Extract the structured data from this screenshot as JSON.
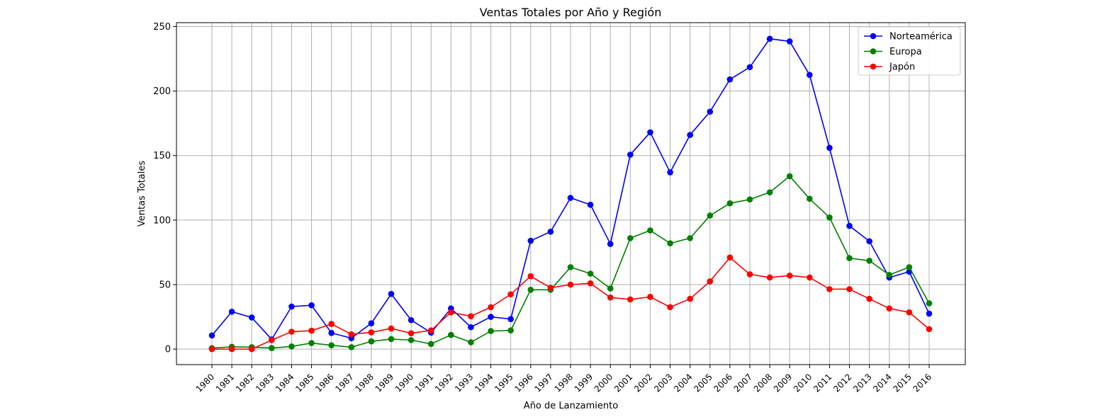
{
  "chart_data": {
    "type": "line",
    "title": "Ventas Totales por Año y Región",
    "xlabel": "Año de Lanzamiento",
    "ylabel": "Ventas Totales",
    "ylim": [
      -12,
      253
    ],
    "yticks": [
      0,
      50,
      100,
      150,
      200,
      250
    ],
    "grid": true,
    "legend_position": "top-right",
    "categories": [
      "1980",
      "1981",
      "1982",
      "1983",
      "1984",
      "1985",
      "1986",
      "1987",
      "1988",
      "1989",
      "1990",
      "1991",
      "1992",
      "1993",
      "1994",
      "1995",
      "1996",
      "1997",
      "1998",
      "1999",
      "2000",
      "2001",
      "2002",
      "2003",
      "2004",
      "2005",
      "2006",
      "2007",
      "2008",
      "2009",
      "2010",
      "2011",
      "2012",
      "2013",
      "2014",
      "2015",
      "2016"
    ],
    "series": [
      {
        "name": "Norteamérica",
        "color": "#0000ff",
        "values": [
          10.6,
          29.0,
          24.5,
          7.5,
          33.0,
          34.0,
          12.5,
          8.5,
          20.0,
          42.8,
          22.5,
          12.8,
          31.5,
          17.0,
          25.0,
          23.3,
          84.0,
          91.0,
          117.2,
          111.9,
          81.5,
          150.7,
          168.0,
          137.0,
          166.0,
          184.0,
          209.0,
          218.5,
          240.5,
          238.5,
          212.5,
          156.0,
          95.5,
          83.6,
          55.5,
          60.0,
          27.5
        ]
      },
      {
        "name": "Europa",
        "color": "#008000",
        "values": [
          0.7,
          1.8,
          1.5,
          0.8,
          2.1,
          4.7,
          3.0,
          1.5,
          6.0,
          7.8,
          7.0,
          4.0,
          11.0,
          5.3,
          14.0,
          14.5,
          46.0,
          46.0,
          63.5,
          58.5,
          47.0,
          86.0,
          92.0,
          82.0,
          86.0,
          103.5,
          113.0,
          116.0,
          121.5,
          134.0,
          116.5,
          102.0,
          70.5,
          68.5,
          57.5,
          63.5,
          35.5
        ]
      },
      {
        "name": "Japón",
        "color": "#ff0000",
        "values": [
          0.0,
          0.0,
          0.0,
          7.0,
          13.5,
          14.3,
          19.5,
          11.5,
          13.0,
          16.0,
          12.3,
          14.5,
          28.5,
          25.5,
          32.5,
          42.5,
          56.5,
          47.5,
          50.0,
          51.0,
          40.0,
          38.5,
          40.5,
          32.5,
          39.0,
          52.5,
          71.0,
          58.0,
          55.5,
          57.0,
          55.5,
          46.5,
          46.5,
          39.0,
          31.5,
          28.5,
          15.5
        ]
      }
    ]
  }
}
